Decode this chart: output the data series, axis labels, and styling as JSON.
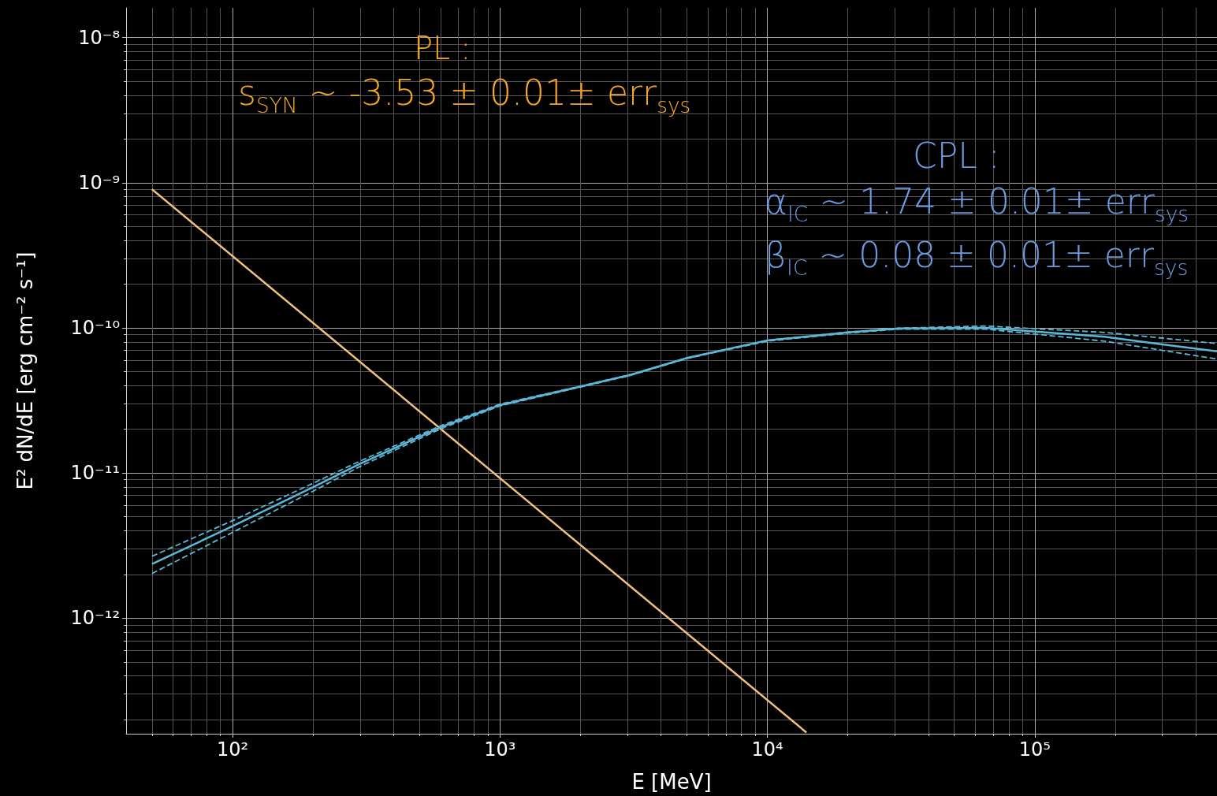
{
  "chart_data": {
    "type": "line",
    "xlabel": "E [MeV]",
    "ylabel": "E² dN/dE [erg cm⁻² s⁻¹]",
    "log": "xy",
    "grid": true,
    "marker": "none",
    "xlim": [
      40,
      480000
    ],
    "xticks": [
      {
        "value": 100,
        "label": "10²"
      },
      {
        "value": 1000,
        "label": "10³"
      },
      {
        "value": 10000,
        "label": "10⁴"
      },
      {
        "value": 100000,
        "label": "10⁵"
      }
    ],
    "ylim": [
      1.6e-13,
      1.6e-08
    ],
    "yticks": [
      {
        "value": 1e-08,
        "label": "10⁻⁸"
      },
      {
        "value": 1e-09,
        "label": "10⁻⁹"
      },
      {
        "value": 1e-10,
        "label": "10⁻¹⁰"
      },
      {
        "value": 1e-11,
        "label": "10⁻¹¹"
      },
      {
        "value": 1e-12,
        "label": "10⁻¹²"
      }
    ],
    "series": [
      {
        "color": "#f0c080",
        "x": [
          50,
          14000
        ],
        "values": [
          9e-10,
          1.63e-13
        ]
      },
      {
        "color": "#5bb8d8",
        "x": [
          50,
          100,
          200,
          300,
          605,
          1000,
          2000,
          3070,
          5000,
          10000,
          20000,
          31100,
          65600,
          182000,
          300000,
          480000
        ],
        "values": [
          2.36e-12,
          4.3e-12,
          8e-12,
          1.16e-11,
          2.08e-11,
          2.94e-11,
          3.94e-11,
          4.74e-11,
          6.2e-11,
          8.2e-11,
          9.3e-11,
          9.9e-11,
          1e-10,
          8.7e-11,
          7.7e-11,
          6.9e-11
        ]
      },
      {
        "color": "#5bb8d8",
        "line_style": "dashed",
        "x": [
          50,
          100,
          200,
          300,
          605,
          1000,
          2000,
          3070,
          5000,
          10000,
          20000,
          31100,
          65600,
          182000,
          300000,
          480000
        ],
        "values": [
          2.67e-12,
          4.7e-12,
          8.5e-12,
          1.21e-11,
          2.13e-11,
          2.98e-11,
          3.97e-11,
          4.76e-11,
          6.2e-11,
          8.2e-11,
          9.35e-11,
          9.95e-11,
          1.03e-10,
          9.3e-11,
          8.5e-11,
          7.8e-11
        ]
      },
      {
        "color": "#5bb8d8",
        "line_style": "dashed",
        "x": [
          50,
          100,
          200,
          300,
          605,
          1000,
          2000,
          3070,
          5000,
          10000,
          20000,
          31100,
          65600,
          182000,
          300000,
          480000
        ],
        "values": [
          2.03e-12,
          3.9e-12,
          7.5e-12,
          1.11e-11,
          2.03e-11,
          2.9e-11,
          3.91e-11,
          4.7e-11,
          6.15e-11,
          8.1e-11,
          9.2e-11,
          9.8e-11,
          9.8e-11,
          8.1e-11,
          7e-11,
          6.1e-11
        ]
      }
    ],
    "annotations": [
      "PL :",
      "s$_{SYN}$ ~ -3.53 ± 0.01± err$_{sys}$",
      "CPL :",
      "α$_{IC}$ ~ 1.74 ± 0.01± err$_{sys}$",
      "β$_{IC}$ ~ 0.08 ± 0.01± err$_{sys}$"
    ]
  }
}
